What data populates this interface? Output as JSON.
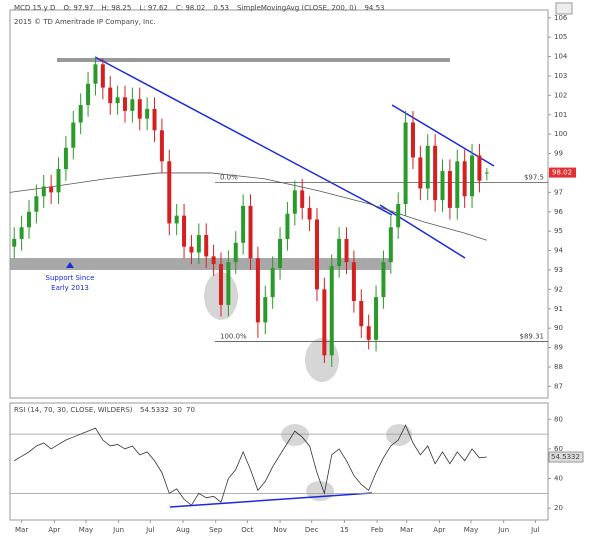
{
  "chart_data": [
    {
      "type": "candlestick",
      "header": [
        "MCD 15 y D",
        "O: 97.97",
        "H: 98.25",
        "L: 97.62",
        "C: 98.02",
        "0.53",
        "SimpleMovingAvg (CLOSE, 200, 0)",
        "94.53"
      ],
      "copyright": "2015 © TD Ameritrade IP Company, Inc.",
      "x": [
        -7,
        0,
        7,
        14,
        21,
        28,
        35,
        42,
        49,
        56,
        63,
        70,
        77,
        84,
        91,
        98,
        105,
        112,
        119,
        126,
        133,
        140,
        147,
        154,
        161,
        168,
        175,
        182,
        189,
        196,
        203,
        210,
        217,
        224,
        231,
        238,
        245,
        252,
        259,
        266,
        273,
        280,
        287,
        294,
        301,
        308,
        315,
        322,
        329,
        336,
        343,
        350,
        357,
        364,
        371,
        378,
        385,
        392,
        399,
        406,
        413,
        420,
        427,
        434,
        441
      ],
      "open": [
        94.2,
        94.6,
        95.2,
        96.0,
        96.8,
        97.3,
        97.0,
        98.2,
        99.3,
        100.6,
        101.5,
        102.6,
        103.6,
        102.4,
        101.6,
        101.9,
        101.2,
        101.8,
        100.8,
        101.3,
        100.2,
        98.6,
        95.4,
        95.8,
        94.2,
        93.9,
        94.8,
        93.7,
        93.3,
        91.2,
        93.4,
        94.4,
        96.3,
        93.6,
        90.3,
        91.6,
        93.1,
        94.6,
        95.9,
        97.1,
        96.2,
        95.6,
        92.0,
        88.6,
        93.2,
        94.6,
        93.4,
        91.4,
        90.1,
        89.4,
        91.6,
        93.4,
        95.2,
        96.4,
        100.6,
        98.8,
        97.2,
        99.4,
        96.6,
        98.1,
        96.2,
        98.6,
        96.8,
        98.9,
        97.97
      ],
      "high": [
        95.2,
        95.8,
        96.6,
        97.4,
        97.9,
        97.9,
        98.8,
        99.9,
        101.2,
        102.1,
        103.2,
        104.0,
        103.9,
        103.0,
        102.5,
        102.5,
        102.4,
        102.4,
        101.9,
        101.9,
        100.8,
        99.2,
        96.4,
        96.4,
        94.8,
        95.4,
        95.4,
        94.3,
        93.9,
        94.0,
        95.0,
        96.9,
        96.9,
        94.2,
        92.2,
        93.7,
        95.2,
        96.5,
        97.6,
        97.7,
        96.8,
        96.2,
        92.6,
        93.8,
        95.2,
        95.2,
        94.0,
        92.0,
        90.7,
        92.2,
        94.0,
        95.8,
        97.0,
        101.2,
        101.2,
        99.4,
        100.0,
        100.0,
        98.7,
        98.7,
        99.2,
        99.2,
        99.5,
        99.5,
        98.25
      ],
      "low": [
        93.6,
        94.0,
        94.6,
        95.4,
        96.2,
        96.4,
        96.4,
        97.6,
        98.7,
        100.0,
        100.9,
        102.0,
        101.8,
        101.0,
        101.0,
        100.6,
        100.6,
        100.2,
        100.2,
        99.6,
        98.0,
        94.8,
        94.8,
        93.6,
        93.3,
        93.3,
        93.1,
        92.7,
        90.6,
        90.6,
        92.8,
        93.8,
        93.0,
        89.5,
        89.7,
        91.0,
        92.5,
        94.0,
        95.3,
        95.6,
        95.0,
        91.4,
        88.2,
        88.0,
        92.6,
        92.8,
        90.8,
        89.5,
        88.9,
        88.8,
        91.0,
        92.8,
        94.6,
        95.8,
        98.2,
        96.6,
        96.6,
        96.0,
        96.0,
        95.6,
        95.6,
        96.2,
        96.2,
        97.0,
        97.62
      ],
      "close": [
        94.6,
        95.2,
        96.0,
        96.8,
        97.3,
        97.0,
        98.2,
        99.3,
        100.6,
        101.5,
        102.6,
        103.6,
        102.4,
        101.6,
        101.9,
        101.2,
        101.8,
        100.8,
        101.3,
        100.2,
        98.6,
        95.4,
        95.8,
        94.2,
        93.9,
        94.8,
        93.7,
        93.3,
        91.2,
        93.4,
        94.4,
        96.3,
        93.6,
        90.3,
        91.6,
        93.1,
        94.6,
        95.9,
        97.1,
        96.2,
        95.6,
        92.0,
        88.6,
        93.2,
        94.6,
        93.4,
        91.4,
        90.1,
        89.4,
        91.6,
        93.4,
        95.2,
        96.4,
        100.6,
        98.8,
        97.2,
        99.4,
        96.6,
        98.1,
        96.2,
        98.6,
        96.8,
        98.9,
        97.6,
        98.02
      ],
      "up_color": "#2a9a2a",
      "down_color": "#d42020",
      "sma": {
        "x": [
          -11,
          30,
          80,
          130,
          180,
          230,
          280,
          330,
          380,
          420,
          441
        ],
        "values": [
          97.0,
          97.3,
          97.7,
          98.0,
          98.0,
          97.7,
          97.1,
          96.4,
          95.5,
          94.9,
          94.53
        ],
        "color": "#555555"
      },
      "price_color": "#e03030",
      "xlim": [
        -11,
        499
      ],
      "xticks": [
        {
          "value": 0,
          "label": "Mar"
        },
        {
          "value": 31,
          "label": "Apr"
        },
        {
          "value": 61,
          "label": "May"
        },
        {
          "value": 92,
          "label": "Jun"
        },
        {
          "value": 122,
          "label": "Jul"
        },
        {
          "value": 153,
          "label": "Aug"
        },
        {
          "value": 184,
          "label": "Sep"
        },
        {
          "value": 214,
          "label": "Oct"
        },
        {
          "value": 245,
          "label": "Nov"
        },
        {
          "value": 275,
          "label": "Dec"
        },
        {
          "value": 306,
          "label": "15"
        },
        {
          "value": 337,
          "label": "Feb"
        },
        {
          "value": 365,
          "label": "Mar"
        },
        {
          "value": 396,
          "label": "Apr"
        },
        {
          "value": 426,
          "label": "May"
        },
        {
          "value": 457,
          "label": "Jun"
        },
        {
          "value": 487,
          "label": "Jul"
        }
      ],
      "ylim": [
        86.4,
        106.4
      ],
      "yticks": [
        87,
        88,
        89,
        90,
        91,
        92,
        93,
        94,
        95,
        96,
        97,
        98,
        99,
        100,
        101,
        102,
        103,
        104,
        105,
        106
      ],
      "fib_levels": [
        {
          "label": "0.0%",
          "price_label": "$97.5",
          "value": 97.5
        },
        {
          "label": "100.0%",
          "price_label": "$89.31",
          "value": 89.31
        }
      ],
      "annotation": [
        "Support Since",
        "Early 2013"
      ]
    },
    {
      "type": "line",
      "header": "RSI (14, 70, 30, CLOSE, WILDERS)",
      "values": [
        52,
        55,
        58,
        62,
        64,
        60,
        63,
        66,
        68,
        70,
        72,
        74,
        66,
        62,
        63,
        60,
        62,
        56,
        58,
        52,
        44,
        30,
        33,
        26,
        22,
        30,
        27,
        28,
        24,
        40,
        46,
        58,
        46,
        32,
        38,
        48,
        56,
        64,
        72,
        68,
        62,
        44,
        30,
        56,
        60,
        52,
        42,
        36,
        32,
        44,
        54,
        62,
        66,
        76,
        64,
        56,
        62,
        50,
        58,
        50,
        58,
        52,
        60,
        54,
        54.5332
      ],
      "color": "#333333",
      "levels": [
        30,
        70
      ],
      "ylim": [
        12,
        91
      ],
      "yticks": [
        20,
        40,
        60,
        80
      ]
    }
  ]
}
